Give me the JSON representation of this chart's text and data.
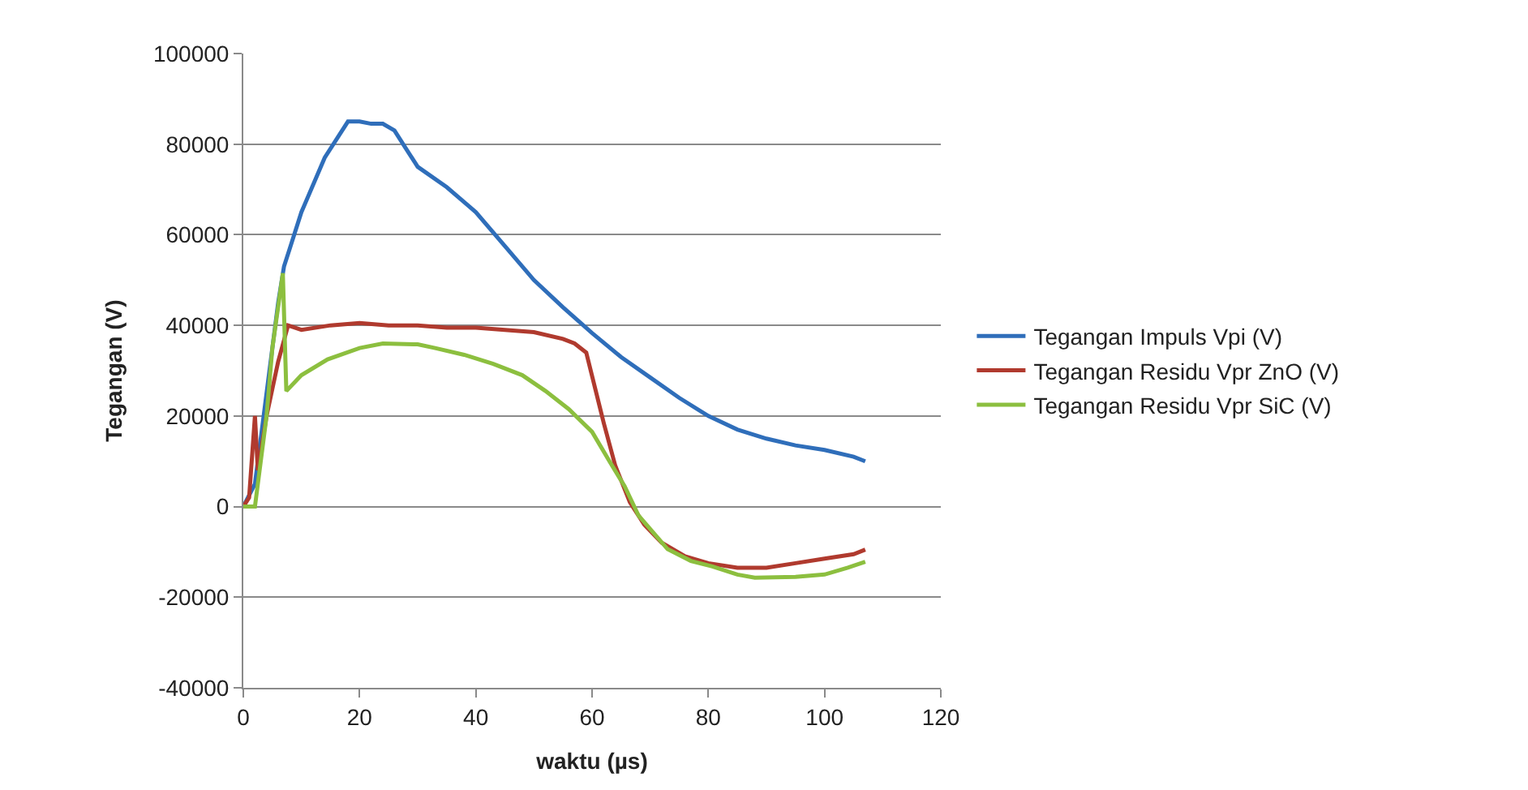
{
  "chart_data": {
    "type": "line",
    "xlabel": "waktu (µs)",
    "ylabel": "Tegangan (V)",
    "xlim": [
      0,
      120
    ],
    "xticks": [
      0,
      20,
      40,
      60,
      80,
      100,
      120
    ],
    "ylim": [
      -40000,
      100000
    ],
    "yticks": [
      -40000,
      -20000,
      0,
      20000,
      40000,
      60000,
      80000,
      100000
    ],
    "grid": "y",
    "legend": "right",
    "marker": "none",
    "line_style": "solid",
    "series": [
      {
        "name": "Tegangan Impuls Vpi (V)",
        "color": "#2f6eba",
        "x": [
          0,
          2,
          4,
          6,
          7,
          8,
          10,
          12,
          14,
          16,
          18,
          20,
          22,
          24,
          26,
          28,
          30,
          35,
          40,
          45,
          50,
          55,
          60,
          65,
          70,
          75,
          80,
          85,
          90,
          95,
          100,
          105,
          107
        ],
        "values": [
          0,
          5000,
          25000,
          45000,
          53000,
          57000,
          65000,
          71000,
          77000,
          81000,
          85000,
          85000,
          84500,
          84500,
          83000,
          79000,
          75000,
          70500,
          65000,
          57500,
          50000,
          44000,
          38300,
          33000,
          28500,
          24000,
          20000,
          17000,
          15000,
          13500,
          12500,
          11000,
          10000
        ]
      },
      {
        "name": "Tegangan Residu Vpr ZnO (V)",
        "color": "#b03a2e",
        "x": [
          0,
          1,
          2,
          2.5,
          4,
          6,
          7.7,
          10,
          15,
          20,
          25,
          30,
          35,
          40,
          45,
          50,
          55,
          57,
          59,
          62,
          64,
          66.5,
          69,
          72,
          76,
          80,
          85,
          90,
          95,
          100,
          105,
          107
        ],
        "values": [
          0,
          2000,
          20000,
          8000,
          20000,
          32000,
          40000,
          39000,
          40000,
          40500,
          40000,
          40000,
          39500,
          39500,
          39000,
          38500,
          37000,
          36000,
          34000,
          18500,
          9000,
          1000,
          -4000,
          -8000,
          -11000,
          -12500,
          -13500,
          -13500,
          -12500,
          -11500,
          -10500,
          -9500
        ]
      },
      {
        "name": "Tegangan Residu Vpr SiC (V)",
        "color": "#8cbf3f",
        "x": [
          0,
          2,
          4,
          5,
          6.8,
          7.4,
          10,
          14.5,
          20,
          24,
          30,
          33,
          38,
          43,
          48,
          52,
          56,
          60,
          63,
          65.6,
          68,
          73,
          77,
          80.7,
          85,
          88,
          95,
          100,
          104,
          107
        ],
        "values": [
          0,
          0,
          20000,
          35000,
          51500,
          25500,
          29000,
          32500,
          35000,
          36000,
          35800,
          35000,
          33500,
          31500,
          29000,
          25500,
          21500,
          16500,
          10000,
          4500,
          -2000,
          -9400,
          -12000,
          -13200,
          -15000,
          -15700,
          -15500,
          -15000,
          -13500,
          -12200
        ]
      }
    ]
  }
}
